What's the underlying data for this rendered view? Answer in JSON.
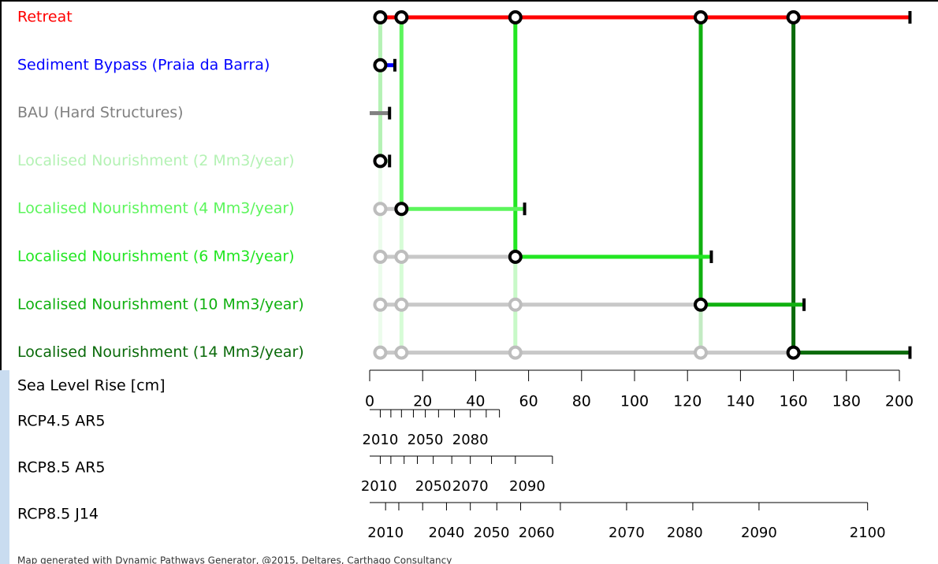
{
  "chart_data": {
    "type": "pathways",
    "actions": [
      {
        "name": "Retreat",
        "color": "#ff0000",
        "start": 4,
        "end": 204
      },
      {
        "name": "Sediment Bypass (Praia da Barra)",
        "color": "#0000ff",
        "start": 4,
        "end": 9.5
      },
      {
        "name": "BAU (Hard Structures)",
        "color": "#808080",
        "start": 0,
        "end": 7.5
      },
      {
        "name": "Localised Nourishment (2 Mm3/year)",
        "color": "#b4f2b4",
        "start": 4,
        "end": 7.5
      },
      {
        "name": "Localised Nourishment (4 Mm3/year)",
        "color": "#5cf55c",
        "start": 12,
        "end": 58.5
      },
      {
        "name": "Localised Nourishment (6 Mm3/year)",
        "color": "#22e622",
        "start": 55,
        "end": 129
      },
      {
        "name": "Localised Nourishment (10 Mm3/year)",
        "color": "#10b010",
        "start": 125,
        "end": 164
      },
      {
        "name": "Localised Nourishment (14 Mm3/year)",
        "color": "#0a6a0a",
        "start": 160,
        "end": 204
      }
    ],
    "tipping_points": [
      4,
      12,
      55,
      125,
      160
    ],
    "x_label": "Sea Level Rise [cm]",
    "xlim": [
      0,
      200
    ],
    "xticks": [
      0,
      20,
      40,
      60,
      80,
      100,
      120,
      140,
      160,
      180,
      200
    ],
    "scenarios": [
      {
        "name": "RCP4.5 AR5",
        "ticks": [
          4,
          8,
          12,
          16.5,
          21,
          26,
          32,
          38,
          44,
          49
        ],
        "tick_labels": [
          {
            "value": 4,
            "label": "2010"
          },
          {
            "value": 21,
            "label": "2050"
          },
          {
            "value": 38,
            "label": "2080"
          }
        ]
      },
      {
        "name": "RCP8.5 AR5",
        "ticks": [
          4,
          8,
          13,
          18,
          24,
          31,
          38,
          46,
          55,
          69
        ],
        "tick_labels": [
          {
            "value": 3.5,
            "label": "2010"
          },
          {
            "value": 24,
            "label": "2050"
          },
          {
            "value": 38,
            "label": "2070"
          },
          {
            "value": 59.5,
            "label": "2090"
          }
        ]
      },
      {
        "name": "RCP8.5 J14",
        "ticks": [
          6,
          11,
          20,
          29,
          38,
          48,
          57,
          72,
          97,
          122,
          147,
          188
        ],
        "tick_labels": [
          {
            "value": 6,
            "label": "2010"
          },
          {
            "value": 29,
            "label": "2040"
          },
          {
            "value": 46,
            "label": "2050"
          },
          {
            "value": 63,
            "label": "2060"
          },
          {
            "value": 97,
            "label": "2070"
          },
          {
            "value": 119,
            "label": "2080"
          },
          {
            "value": 147,
            "label": "2090"
          },
          {
            "value": 188,
            "label": "2100"
          }
        ]
      }
    ],
    "footer": "Map generated with Dynamic Pathways Generator, @2015, Deltares, Carthago Consultancy"
  }
}
